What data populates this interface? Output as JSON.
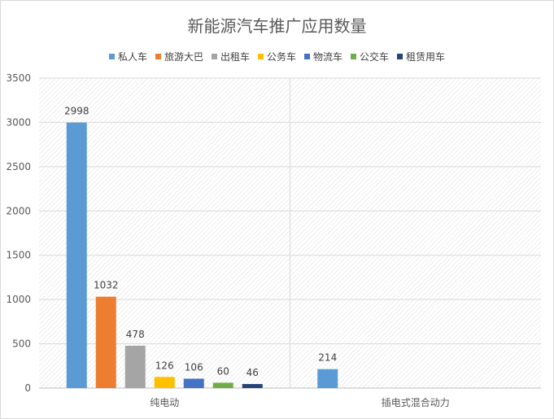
{
  "chart_data": {
    "type": "bar",
    "title": "新能源汽车推广应用数量",
    "categories": [
      "纯电动",
      "插电式混合动力"
    ],
    "series": [
      {
        "name": "私人车",
        "color": "#5b9bd5",
        "values": [
          2998,
          214
        ]
      },
      {
        "name": "旅游大巴",
        "color": "#ed7d31",
        "values": [
          1032,
          null
        ]
      },
      {
        "name": "出租车",
        "color": "#a5a5a5",
        "values": [
          478,
          null
        ]
      },
      {
        "name": "公务车",
        "color": "#ffc000",
        "values": [
          126,
          null
        ]
      },
      {
        "name": "物流车",
        "color": "#4472c4",
        "values": [
          106,
          null
        ]
      },
      {
        "name": "公交车",
        "color": "#70ad47",
        "values": [
          60,
          null
        ]
      },
      {
        "name": "租赁用车",
        "color": "#264478",
        "values": [
          46,
          null
        ]
      }
    ],
    "yticks": [
      "0",
      "500",
      "1000",
      "1500",
      "2000",
      "2500",
      "3000",
      "3500"
    ],
    "ylim": [
      0,
      3500
    ],
    "grid": true,
    "legend_position": "top"
  }
}
